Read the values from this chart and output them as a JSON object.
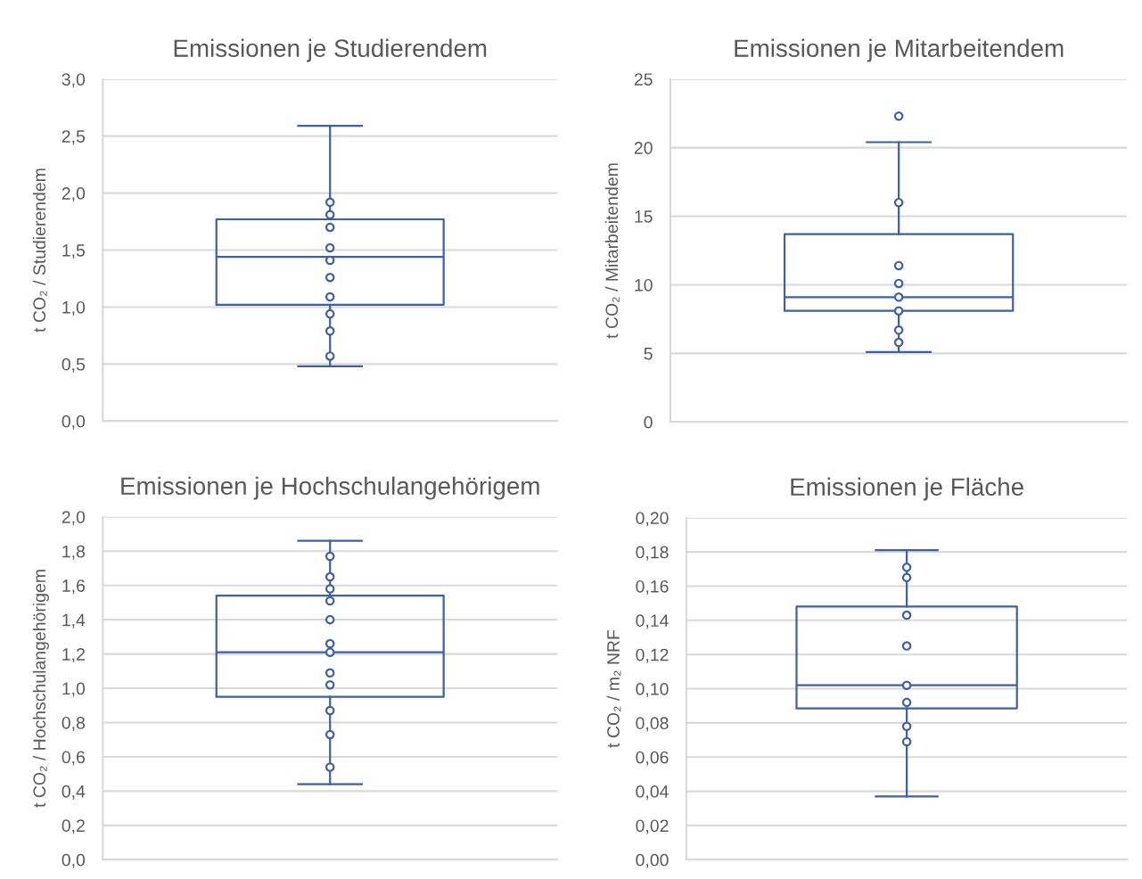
{
  "chart_data": [
    {
      "type": "box",
      "title": "Emissionen je Studierendem",
      "ylabel": "t CO₂ / Studierendem",
      "categories": [
        null
      ],
      "color": "#3f5fa6",
      "grid": "y",
      "marker": "circle",
      "ylim": [
        0,
        3.0
      ],
      "yticks": [
        {
          "value": 0,
          "label": "0,0"
        },
        {
          "value": 0.5,
          "label": "0,5"
        },
        {
          "value": 1.0,
          "label": "1,0"
        },
        {
          "value": 1.5,
          "label": "1,5"
        },
        {
          "value": 2.0,
          "label": "2,0"
        },
        {
          "value": 2.5,
          "label": "2,5"
        },
        {
          "value": 3.0,
          "label": "3,0"
        }
      ],
      "boxes": [
        {
          "low": 0.48,
          "q1": 1.02,
          "median": 1.44,
          "q3": 1.77,
          "high": 2.59
        }
      ],
      "series": [
        {
          "type": "scatter",
          "color": "#3f5fa6",
          "x": [
            null,
            null,
            null,
            null,
            null,
            null,
            null,
            null,
            null,
            null
          ],
          "values": [
            1.92,
            1.81,
            1.7,
            1.52,
            1.41,
            1.26,
            1.09,
            0.94,
            0.79,
            0.57
          ]
        }
      ]
    },
    {
      "type": "box",
      "title": "Emissionen je Mitarbeitendem",
      "ylabel": "t CO₂ / Mitarbeitendem",
      "categories": [
        null
      ],
      "color": "#3f5fa6",
      "grid": "y",
      "marker": "circle",
      "ylim": [
        0,
        25
      ],
      "yticks": [
        0,
        5,
        10,
        15,
        20,
        25
      ],
      "boxes": [
        {
          "low": 5.1,
          "q1": 8.1,
          "median": 9.1,
          "q3": 13.7,
          "high": 20.4,
          "outliers": [
            22.3
          ]
        }
      ],
      "series": [
        {
          "type": "scatter",
          "color": "#3f5fa6",
          "x": [
            null,
            null,
            null,
            null,
            null,
            null,
            null
          ],
          "values": [
            16.0,
            11.4,
            10.1,
            9.1,
            8.1,
            6.7,
            5.8
          ]
        }
      ]
    },
    {
      "type": "box",
      "title": "Emissionen je Hochschulangehörigem",
      "ylabel": "t CO₂ / Hochschulangehörigem",
      "categories": [
        null
      ],
      "color": "#3f5fa6",
      "grid": "y",
      "marker": "circle",
      "ylim": [
        0,
        2.0
      ],
      "yticks": [
        {
          "value": 0,
          "label": "0,0"
        },
        {
          "value": 0.2,
          "label": "0,2"
        },
        {
          "value": 0.4,
          "label": "0,4"
        },
        {
          "value": 0.6,
          "label": "0,6"
        },
        {
          "value": 0.8,
          "label": "0,8"
        },
        {
          "value": 1.0,
          "label": "1,0"
        },
        {
          "value": 1.2,
          "label": "1,2"
        },
        {
          "value": 1.4,
          "label": "1,4"
        },
        {
          "value": 1.6,
          "label": "1,6"
        },
        {
          "value": 1.8,
          "label": "1,8"
        },
        {
          "value": 2.0,
          "label": "2,0"
        }
      ],
      "boxes": [
        {
          "low": 0.44,
          "q1": 0.95,
          "median": 1.21,
          "q3": 1.54,
          "high": 1.86
        }
      ],
      "series": [
        {
          "type": "scatter",
          "color": "#3f5fa6",
          "x": [
            null,
            null,
            null,
            null,
            null,
            null,
            null,
            null,
            null,
            null,
            null,
            null
          ],
          "values": [
            1.77,
            1.65,
            1.58,
            1.51,
            1.4,
            1.26,
            1.21,
            1.09,
            1.02,
            0.87,
            0.73,
            0.54
          ]
        }
      ]
    },
    {
      "type": "box",
      "title": "Emissionen je Fläche",
      "ylabel": "t CO₂ / m₂ NRF",
      "categories": [
        null
      ],
      "color": "#3f5fa6",
      "grid": "y",
      "marker": "circle",
      "ylim": [
        0,
        0.2
      ],
      "yticks": [
        {
          "value": 0,
          "label": "0,00"
        },
        {
          "value": 0.02,
          "label": "0,02"
        },
        {
          "value": 0.04,
          "label": "0,04"
        },
        {
          "value": 0.06,
          "label": "0,06"
        },
        {
          "value": 0.08,
          "label": "0,08"
        },
        {
          "value": 0.1,
          "label": "0,10"
        },
        {
          "value": 0.12,
          "label": "0,12"
        },
        {
          "value": 0.14,
          "label": "0,14"
        },
        {
          "value": 0.16,
          "label": "0,16"
        },
        {
          "value": 0.18,
          "label": "0,18"
        },
        {
          "value": 0.2,
          "label": "0,20"
        }
      ],
      "boxes": [
        {
          "low": 0.037,
          "q1": 0.0885,
          "median": 0.102,
          "q3": 0.148,
          "high": 0.181
        }
      ],
      "series": [
        {
          "type": "scatter",
          "color": "#3f5fa6",
          "x": [
            null,
            null,
            null,
            null,
            null,
            null,
            null,
            null
          ],
          "values": [
            0.171,
            0.165,
            0.143,
            0.125,
            0.102,
            0.092,
            0.078,
            0.069
          ]
        }
      ]
    }
  ]
}
